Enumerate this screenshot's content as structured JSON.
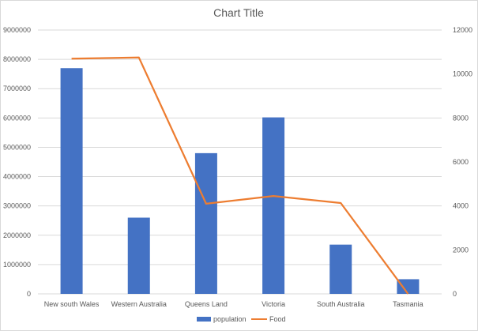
{
  "chart_data": {
    "type": "bar",
    "title": "Chart Title",
    "categories": [
      "New south Wales",
      "Western Australia",
      "Queens Land",
      "Victoria",
      "South Australia",
      "Tasmania"
    ],
    "series": [
      {
        "name": "population",
        "type": "bar",
        "axis": "left",
        "color": "#4472c4",
        "values": [
          7700000,
          2600000,
          4800000,
          6020000,
          1680000,
          500000
        ]
      },
      {
        "name": "Food",
        "type": "line",
        "axis": "right",
        "color": "#ed7d31",
        "values": [
          10700,
          10750,
          4100,
          4450,
          4130,
          0
        ]
      }
    ],
    "y_left": {
      "ylim": [
        0,
        9000000
      ],
      "ticks": [
        "0",
        "1000000",
        "2000000",
        "3000000",
        "4000000",
        "5000000",
        "6000000",
        "7000000",
        "8000000",
        "9000000"
      ]
    },
    "y_right": {
      "ylim": [
        0,
        12000
      ],
      "ticks": [
        "0",
        "2000",
        "4000",
        "6000",
        "8000",
        "10000",
        "12000"
      ]
    },
    "grid": true,
    "legend_position": "bottom"
  }
}
